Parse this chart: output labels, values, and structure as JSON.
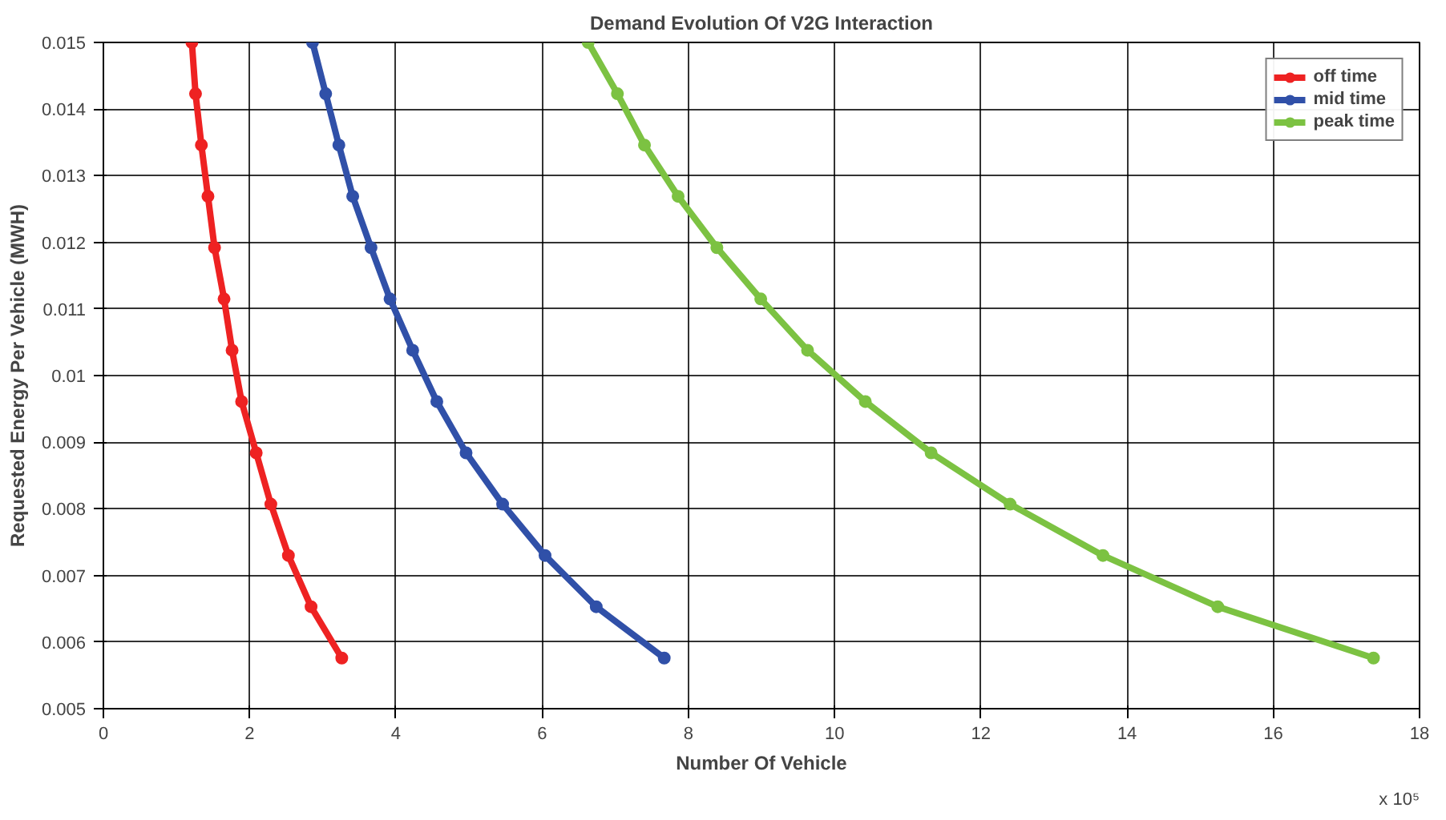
{
  "chart_data": {
    "type": "line",
    "title": "Demand Evolution Of V2G Interaction",
    "xlabel": "Number Of Vehicle",
    "ylabel": "Requested Energy Per Vehicle (MWH)",
    "annotations": [
      "x 10⁵"
    ],
    "xlim": [
      0,
      18
    ],
    "xticks": [
      0,
      2,
      4,
      6,
      8,
      10,
      12,
      14,
      16,
      18
    ],
    "ylim": [
      0.005,
      0.015
    ],
    "yticks": [
      0.005,
      0.006,
      0.007,
      0.008,
      0.009,
      0.01,
      0.011,
      0.012,
      0.013,
      0.014,
      0.015
    ],
    "grid": true,
    "legend": "top right",
    "marker": "circle",
    "line_style": "solid",
    "series": [
      {
        "name": "off time",
        "color": "#ee2222",
        "x": [
          1.21,
          1.26,
          1.34,
          1.43,
          1.52,
          1.65,
          1.76,
          1.89,
          2.09,
          2.29,
          2.53,
          2.84,
          3.26
        ],
        "values": [
          0.015,
          0.01423,
          0.01346,
          0.01269,
          0.01192,
          0.01115,
          0.01038,
          0.00961,
          0.00884,
          0.00807,
          0.0073,
          0.00653,
          0.00576
        ]
      },
      {
        "name": "mid time",
        "color": "#3050a8",
        "x": [
          2.86,
          3.04,
          3.22,
          3.41,
          3.66,
          3.92,
          4.23,
          4.56,
          4.96,
          5.46,
          6.04,
          6.74,
          7.67
        ],
        "values": [
          0.015,
          0.01423,
          0.01346,
          0.01269,
          0.01192,
          0.01115,
          0.01038,
          0.00961,
          0.00884,
          0.00807,
          0.0073,
          0.00653,
          0.00576
        ]
      },
      {
        "name": "peak time",
        "color": "#7cc242",
        "x": [
          6.63,
          7.03,
          7.4,
          7.86,
          8.39,
          8.99,
          9.63,
          10.42,
          11.32,
          12.4,
          13.67,
          15.24,
          17.37
        ],
        "values": [
          0.015,
          0.01423,
          0.01346,
          0.01269,
          0.01192,
          0.01115,
          0.01038,
          0.00961,
          0.00884,
          0.00807,
          0.0073,
          0.00653,
          0.00576
        ]
      }
    ]
  }
}
